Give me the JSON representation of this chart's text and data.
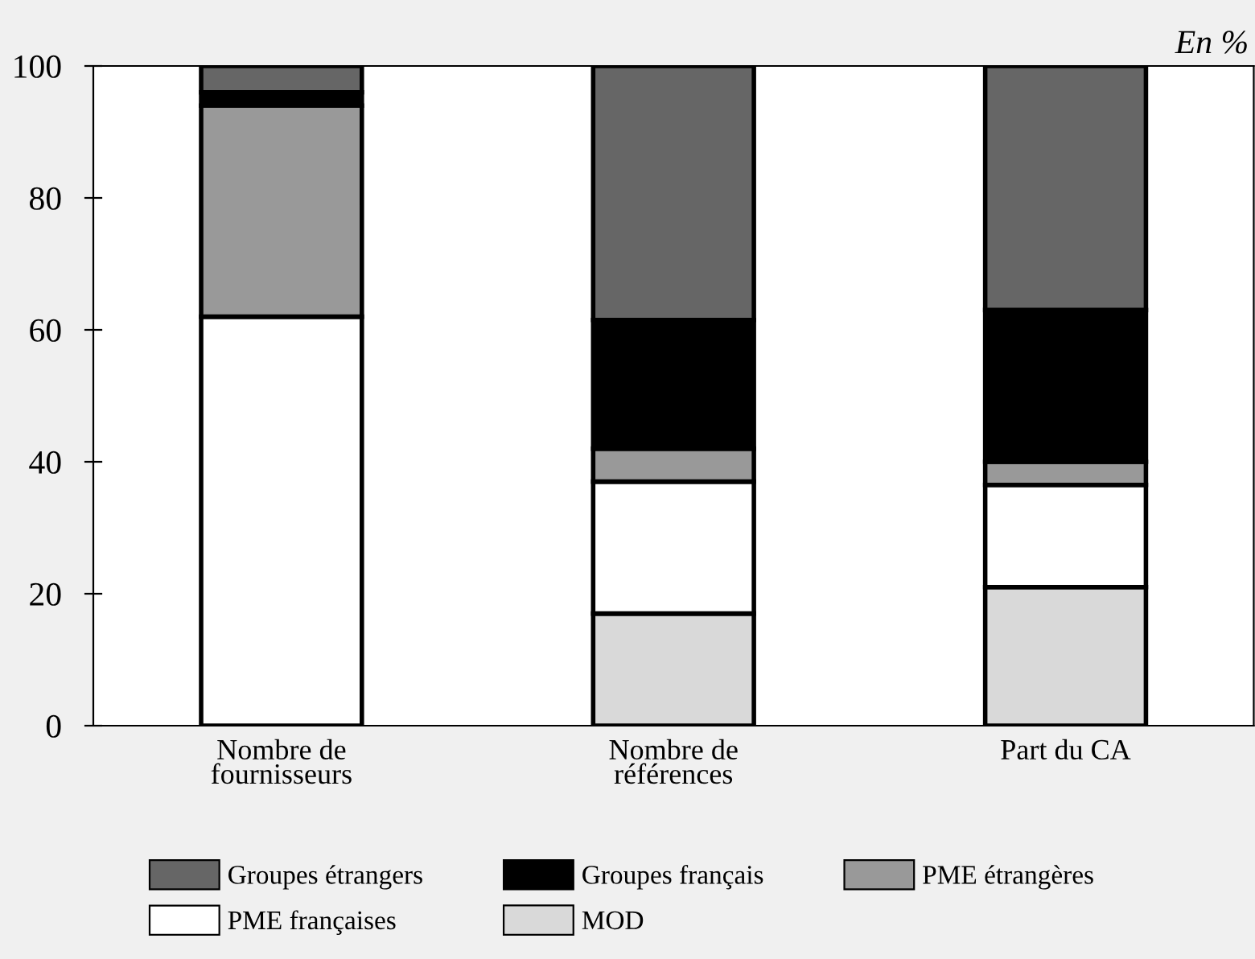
{
  "chart_data": {
    "type": "bar",
    "stacked": true,
    "categories": [
      "Nombre de\nfournisseurs",
      "Nombre de\nréférences",
      "Part du CA"
    ],
    "series": [
      {
        "name": "MOD",
        "color": "#d9d9d9",
        "values": [
          0,
          17,
          21
        ]
      },
      {
        "name": "PME françaises",
        "color": "#ffffff",
        "values": [
          62,
          20,
          15.5
        ]
      },
      {
        "name": "PME étrangères",
        "color": "#999999",
        "values": [
          32,
          5,
          3.5
        ]
      },
      {
        "name": "Groupes français",
        "color": "#000000",
        "values": [
          2,
          19.5,
          23
        ]
      },
      {
        "name": "Groupes étrangers",
        "color": "#666666",
        "values": [
          4,
          38.5,
          37
        ]
      }
    ],
    "ylim": [
      0,
      100
    ],
    "yticks": [
      0,
      20,
      40,
      60,
      80,
      100
    ],
    "grid": false,
    "legend": "bottom",
    "annotations": [
      "En %"
    ]
  }
}
